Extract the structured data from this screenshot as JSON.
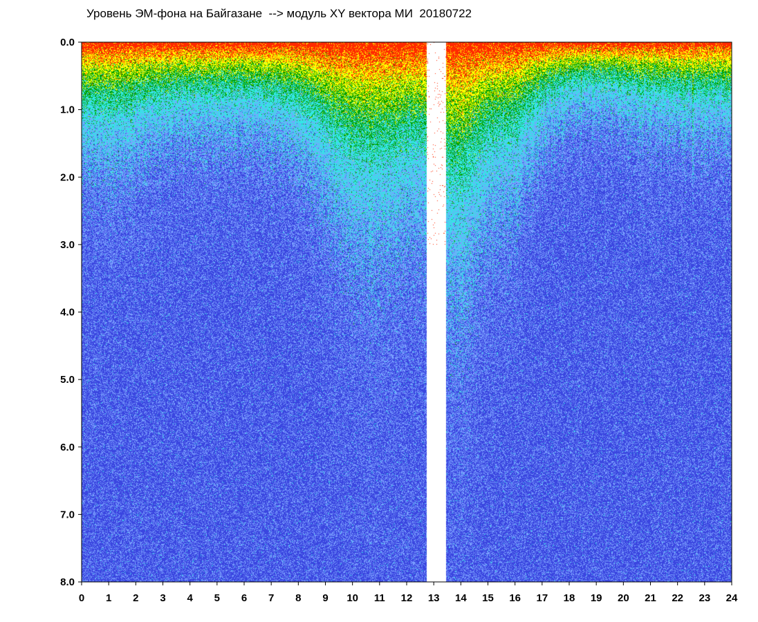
{
  "chart_data": {
    "type": "heatmap",
    "title": "Уровень ЭМ-фона на Байгазане  --> модуль XY вектора МИ  20180722",
    "xlabel": "",
    "ylabel": "",
    "xlim": [
      0,
      24
    ],
    "ylim": [
      0,
      8
    ],
    "y_inverted": true,
    "x_ticks": [
      "0",
      "1",
      "2",
      "3",
      "4",
      "5",
      "6",
      "7",
      "8",
      "9",
      "10",
      "11",
      "12",
      "13",
      "14",
      "15",
      "16",
      "17",
      "18",
      "19",
      "20",
      "21",
      "22",
      "23",
      "24"
    ],
    "y_ticks": [
      "0.0",
      "1.0",
      "2.0",
      "3.0",
      "4.0",
      "5.0",
      "6.0",
      "7.0",
      "8.0"
    ],
    "palette": [
      "#ff2a00",
      "#ffff00",
      "#00a000",
      "#33e6e6",
      "#7aa0ff",
      "#3a46e0"
    ],
    "gap_hours": [
      12.75,
      13.45
    ],
    "grid": false,
    "legend": "none"
  }
}
